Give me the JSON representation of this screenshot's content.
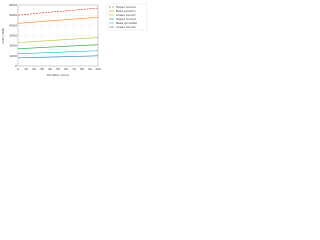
{
  "chart_data": {
    "type": "line",
    "x_label": "Duration (min)",
    "y_label": "Cost (USD)",
    "x": [
      0,
      20,
      40,
      60,
      80,
      100
    ],
    "series": [
      {
        "name": "Upper bound",
        "color": "#d62728",
        "dashed": true,
        "values": [
          5000,
          5150,
          5300,
          5420,
          5560,
          5700
        ]
      },
      {
        "name": "Base (public)",
        "color": "#ff7f0e",
        "dashed": false,
        "values": [
          4200,
          4320,
          4440,
          4560,
          4680,
          4800
        ]
      },
      {
        "name": "Lower bound",
        "color": "#bcbd22",
        "dashed": false,
        "values": [
          2300,
          2400,
          2500,
          2600,
          2700,
          2800
        ]
      },
      {
        "name": "Upper bound",
        "color": "#2ca02c",
        "dashed": false,
        "values": [
          1700,
          1780,
          1860,
          1940,
          2020,
          2100
        ]
      },
      {
        "name": "Base (private)",
        "color": "#17becf",
        "dashed": false,
        "values": [
          1200,
          1260,
          1320,
          1380,
          1440,
          1500
        ]
      },
      {
        "name": "Lower bound",
        "color": "#1f77b4",
        "dashed": false,
        "values": [
          800,
          840,
          880,
          920,
          960,
          1000
        ]
      }
    ],
    "xlim": [
      0,
      100
    ],
    "xticks": [
      0,
      10,
      20,
      30,
      40,
      50,
      60,
      70,
      80,
      90,
      100
    ],
    "ylim": [
      0,
      6000
    ],
    "yticks": [
      0,
      1000,
      2000,
      3000,
      4000,
      5000,
      6000
    ],
    "grid": true,
    "legend": "right"
  }
}
